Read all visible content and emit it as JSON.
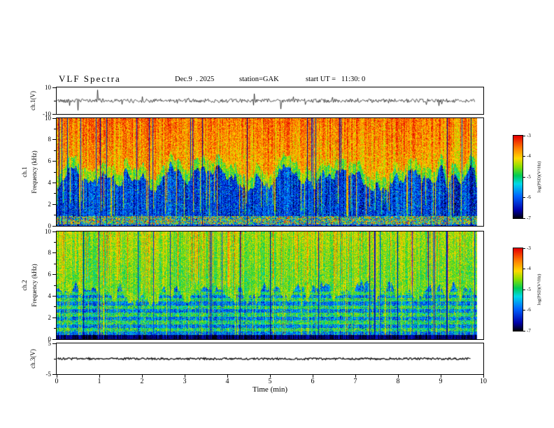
{
  "header": {
    "title": "VLF Spectra",
    "date": "Dec.9  . 2025",
    "station": "station=GAK",
    "start_ut": "start UT =   11:30: 0"
  },
  "x_axis": {
    "label": "Time (min)",
    "range": [
      0,
      10
    ],
    "ticks": [
      0,
      1,
      2,
      3,
      4,
      5,
      6,
      7,
      8,
      9,
      10
    ]
  },
  "panels": [
    {
      "key": "ch1_wave",
      "ylabel": "ch.1(V)",
      "y_range": [
        -10,
        10
      ],
      "y_ticks": [
        10,
        -10
      ],
      "y_minor": [
        0
      ]
    },
    {
      "key": "ch1_spec",
      "ylabel_channel": "ch.1",
      "ylabel_axis": "Frequency (kHz)",
      "y_range": [
        0,
        10
      ],
      "y_ticks": [
        0,
        2,
        4,
        6,
        8,
        10
      ],
      "y_minor": [
        1,
        3,
        5,
        7,
        9
      ]
    },
    {
      "key": "ch2_spec",
      "ylabel_channel": "ch.2",
      "ylabel_axis": "Frequency (kHz)",
      "y_range": [
        0,
        10
      ],
      "y_ticks": [
        0,
        2,
        4,
        6,
        8,
        10
      ],
      "y_minor": [
        1,
        3,
        5,
        7,
        9
      ]
    },
    {
      "key": "ch3_wave",
      "ylabel": "ch.3(V)",
      "y_range": [
        -5,
        5
      ],
      "y_ticks": [
        5,
        -5
      ],
      "y_minor": [
        0
      ]
    }
  ],
  "colorbar": {
    "label": "log(PSD)(V²/Hz)",
    "range": [
      -7,
      -3
    ],
    "ticks": [
      -3,
      -4,
      -5,
      -6,
      -7
    ]
  },
  "colors": {
    "background": "#ffffff",
    "frame": "#000000",
    "trace": "#000000"
  },
  "colormap_stops": [
    [
      0.0,
      "#000006"
    ],
    [
      0.1,
      "#0000a8"
    ],
    [
      0.27,
      "#0064ff"
    ],
    [
      0.42,
      "#00d8e8"
    ],
    [
      0.52,
      "#00cc55"
    ],
    [
      0.63,
      "#8ce000"
    ],
    [
      0.73,
      "#ffd900"
    ],
    [
      0.85,
      "#ff7f00"
    ],
    [
      1.0,
      "#e60000"
    ]
  ],
  "chart_data": [
    {
      "type": "line",
      "name": "ch.1 voltage waveform",
      "xlabel": "Time (min)",
      "xlim": [
        0,
        10
      ],
      "x_data_extent": [
        0,
        9.8
      ],
      "ylabel": "ch.1(V)",
      "ylim": [
        -10,
        10
      ],
      "y_ticks": [
        10,
        -10
      ],
      "summary": "Broadband noise trace centered on 0 V with an envelope of about ±2 V and frequent impulsive spikes reaching about ±9 V throughout the 0 to 9.8 min record."
    },
    {
      "type": "heatmap",
      "name": "ch.1 VLF spectrogram",
      "xlabel": "Time (min)",
      "xlim": [
        0,
        10
      ],
      "ylabel": "Frequency (kHz)",
      "ylim": [
        0,
        10
      ],
      "y_ticks": [
        0,
        2,
        4,
        6,
        8,
        10
      ],
      "zlabel": "log(PSD)(V²/Hz)",
      "zlim": [
        -7,
        -3
      ],
      "features": [
        "High power band (log PSD about -4 to -3, yellow-orange-red) above roughly 5-6 kHz for the whole record",
        "Low power region (log PSD about -7 to -5.5, black-blue) between roughly 1 and 5 kHz with dense vertical striations",
        "Frequent impulsive broadband vertical streaks extending from high frequency down toward 0 kHz",
        "Occasional full-height dark dropout columns",
        "Speckled mixed-power band below about 1 kHz"
      ]
    },
    {
      "type": "heatmap",
      "name": "ch.2 VLF spectrogram",
      "xlabel": "Time (min)",
      "xlim": [
        0,
        10
      ],
      "ylabel": "Frequency (kHz)",
      "ylim": [
        0,
        10
      ],
      "y_ticks": [
        0,
        2,
        4,
        6,
        8,
        10
      ],
      "zlabel": "log(PSD)(V²/Hz)",
      "zlim": [
        -7,
        -3
      ],
      "features": [
        "Moderate power (log PSD about -5 to -4, green/yellow-green) above roughly 4.5-5 kHz",
        "Cyan/green horizontal banding between about 1 and 4.5 kHz over a blue background (log PSD about -6)",
        "Dense vertical striations with occasional bright or dark full-height columns",
        "Dark band (log PSD near -7) below about 0.5 kHz"
      ]
    },
    {
      "type": "line",
      "name": "ch.3 voltage waveform",
      "xlabel": "Time (min)",
      "xlim": [
        0,
        10
      ],
      "x_data_extent": [
        0,
        9.7
      ],
      "ylabel": "ch.3(V)",
      "ylim": [
        -5,
        5
      ],
      "y_ticks": [
        5,
        -5
      ],
      "summary": "Flat trace at 0 V for the entire record."
    }
  ]
}
